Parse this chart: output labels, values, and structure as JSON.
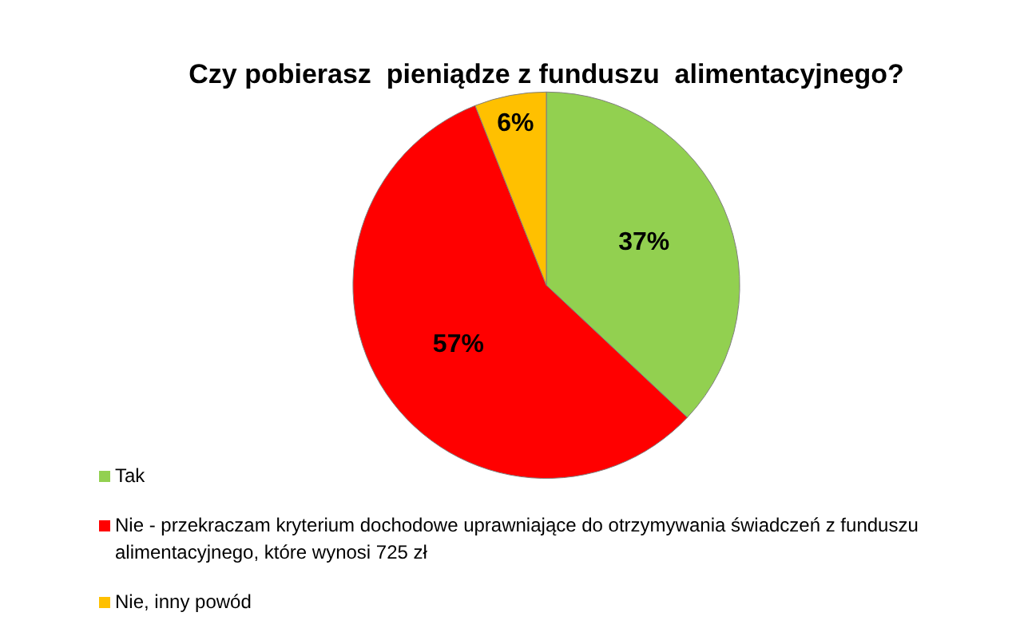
{
  "chart_data": {
    "type": "pie",
    "title": "Czy pobierasz  pieniądze z funduszu  alimentacyjnego?",
    "categories": [
      "Tak",
      "Nie - przekraczam kryterium dochodowe uprawniające do otrzymywania świadczeń z funduszu alimentacyjnego, które wynosi 725 zł",
      "Nie, inny powód"
    ],
    "values": [
      37,
      57,
      6
    ],
    "colors": [
      "#92d050",
      "#ff0000",
      "#ffc000"
    ],
    "value_labels": [
      "37%",
      "57%",
      "6%"
    ],
    "legend": "bottom"
  }
}
